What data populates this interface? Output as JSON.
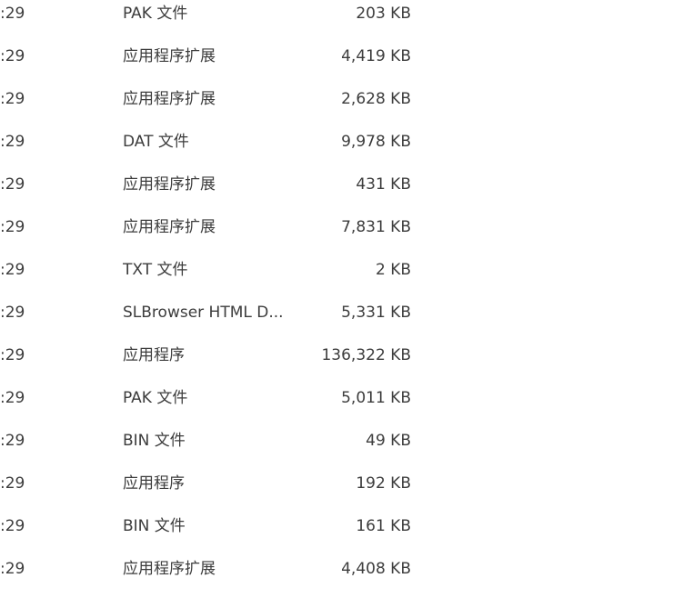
{
  "rows": [
    {
      "time": ":29",
      "type": "PAK 文件",
      "size": "203 KB"
    },
    {
      "time": ":29",
      "type": "应用程序扩展",
      "size": "4,419 KB"
    },
    {
      "time": ":29",
      "type": "应用程序扩展",
      "size": "2,628 KB"
    },
    {
      "time": ":29",
      "type": "DAT 文件",
      "size": "9,978 KB"
    },
    {
      "time": ":29",
      "type": "应用程序扩展",
      "size": "431 KB"
    },
    {
      "time": ":29",
      "type": "应用程序扩展",
      "size": "7,831 KB"
    },
    {
      "time": ":29",
      "type": "TXT 文件",
      "size": "2 KB"
    },
    {
      "time": ":29",
      "type": "SLBrowser HTML D...",
      "size": "5,331 KB"
    },
    {
      "time": ":29",
      "type": "应用程序",
      "size": "136,322 KB"
    },
    {
      "time": ":29",
      "type": "PAK 文件",
      "size": "5,011 KB"
    },
    {
      "time": ":29",
      "type": "BIN 文件",
      "size": "49 KB"
    },
    {
      "time": ":29",
      "type": "应用程序",
      "size": "192 KB"
    },
    {
      "time": ":29",
      "type": "BIN 文件",
      "size": "161 KB"
    },
    {
      "time": ":29",
      "type": "应用程序扩展",
      "size": "4,408 KB"
    }
  ]
}
